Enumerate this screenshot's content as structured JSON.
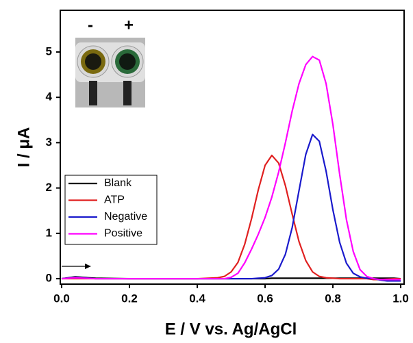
{
  "chart_data": {
    "type": "line",
    "x_label": "E / V vs. Ag/AgCl",
    "y_label": "I / μA",
    "inset_labels": [
      {
        "text": "-",
        "color": "#f0a000"
      },
      {
        "text": "+",
        "color": "#20a040"
      }
    ],
    "x": [
      0,
      0.04,
      0.1,
      0.2,
      0.3,
      0.4,
      0.46,
      0.48,
      0.5,
      0.52,
      0.54,
      0.56,
      0.58,
      0.6,
      0.62,
      0.64,
      0.66,
      0.68,
      0.7,
      0.72,
      0.74,
      0.76,
      0.78,
      0.8,
      0.82,
      0.84,
      0.86,
      0.88,
      0.9,
      0.92,
      0.94,
      0.96,
      0.98,
      1.0
    ],
    "series": [
      {
        "name": "Blank",
        "color": "#000000",
        "values": [
          0,
          0.04,
          0.01,
          0,
          0,
          0,
          0,
          0,
          0,
          0,
          0,
          0,
          0,
          0,
          0.01,
          0.01,
          0.01,
          0.01,
          0.01,
          0.01,
          0.01,
          0.01,
          0.01,
          0.01,
          0.01,
          0.01,
          0.01,
          0.01,
          0.01,
          0.01,
          0.01,
          0.01,
          0.01,
          0
        ]
      },
      {
        "name": "ATP",
        "color": "#e02020",
        "values": [
          0,
          0,
          0,
          0,
          0,
          0,
          0.02,
          0.05,
          0.15,
          0.36,
          0.76,
          1.32,
          1.96,
          2.5,
          2.72,
          2.55,
          2.05,
          1.42,
          0.82,
          0.4,
          0.15,
          0.05,
          0.02,
          0.01,
          0,
          0,
          0,
          0,
          0,
          -0.02,
          -0.02,
          -0.01,
          0,
          0
        ]
      },
      {
        "name": "Negative",
        "color": "#1a1acc",
        "values": [
          0,
          0.03,
          0,
          0,
          0,
          0,
          0,
          0,
          0,
          0,
          0,
          0,
          0.01,
          0.02,
          0.07,
          0.21,
          0.54,
          1.13,
          1.94,
          2.74,
          3.18,
          3.03,
          2.37,
          1.52,
          0.8,
          0.34,
          0.12,
          0.04,
          0.01,
          0,
          -0.03,
          -0.05,
          -0.05,
          -0.05
        ]
      },
      {
        "name": "Positive",
        "color": "#ff00ff",
        "values": [
          0,
          0.02,
          0,
          0,
          0,
          0,
          0,
          0,
          0.03,
          0.12,
          0.35,
          0.65,
          0.98,
          1.35,
          1.8,
          2.35,
          3.0,
          3.7,
          4.3,
          4.72,
          4.9,
          4.82,
          4.3,
          3.4,
          2.3,
          1.3,
          0.6,
          0.2,
          0.05,
          0,
          -0.02,
          -0.02,
          -0.02,
          -0.02
        ]
      }
    ],
    "xlim": [
      -0.004,
      1.01
    ],
    "ylim": [
      -0.12,
      5.92
    ],
    "xticks": [
      {
        "value": 0,
        "label": "0.0"
      },
      {
        "value": 0.2,
        "label": "0.2"
      },
      {
        "value": 0.4,
        "label": "0.4"
      },
      {
        "value": 0.6,
        "label": "0.6"
      },
      {
        "value": 0.8,
        "label": "0.8"
      },
      {
        "value": 1,
        "label": "1.0"
      }
    ],
    "yticks": [
      0,
      1,
      2,
      3,
      4,
      5
    ],
    "legend": "middle-left"
  }
}
